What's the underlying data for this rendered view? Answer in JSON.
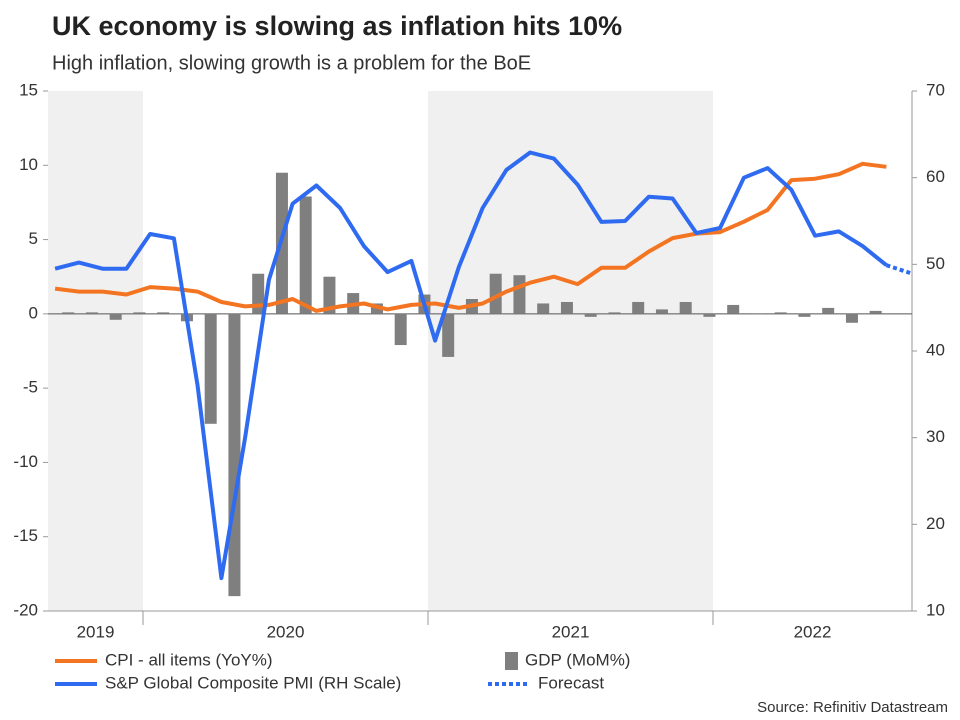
{
  "chart_data": {
    "type": "combo",
    "title": "UK economy is slowing as inflation hits 10%",
    "subtitle": "High inflation, slowing growth is a problem for the BoE",
    "source": "Source: Refinitiv Datastream",
    "x_years": [
      "2019",
      "2020",
      "2021",
      "2022"
    ],
    "categories": [
      null,
      null,
      null,
      null,
      null,
      null,
      null,
      null,
      null,
      null,
      null,
      null,
      null,
      null,
      null,
      null,
      null,
      null,
      null,
      null,
      null,
      null,
      null,
      null,
      null,
      null,
      null,
      null,
      null,
      null,
      null,
      null,
      null,
      null,
      null,
      null,
      null
    ],
    "ylim": [
      -20,
      15
    ],
    "yticks": [
      -20,
      -15,
      -10,
      -5,
      0,
      5,
      10,
      15
    ],
    "y2lim": [
      10,
      70
    ],
    "y2ticks": [
      10,
      20,
      30,
      40,
      50,
      60,
      70
    ],
    "series": [
      {
        "name": "GDP (MoM%)",
        "kind": "bar",
        "color": "#7f7f7f",
        "values": [
          0.1,
          0.1,
          -0.4,
          0.1,
          0.1,
          -0.5,
          -7.4,
          -19.0,
          2.7,
          9.5,
          7.9,
          2.5,
          1.4,
          0.7,
          -2.1,
          1.3,
          -2.9,
          1.0,
          2.7,
          2.6,
          0.7,
          0.8,
          -0.2,
          0.1,
          0.8,
          0.3,
          0.8,
          -0.2,
          0.6,
          0.0,
          0.1,
          -0.2,
          0.4,
          -0.6,
          0.2,
          null,
          null
        ]
      },
      {
        "name": "CPI - all items (YoY%)",
        "kind": "line",
        "color": "#f47521",
        "values": [
          1.7,
          1.5,
          1.5,
          1.3,
          1.8,
          1.7,
          1.5,
          0.8,
          0.5,
          0.6,
          1.0,
          0.2,
          0.5,
          0.7,
          0.3,
          0.6,
          0.7,
          0.4,
          0.7,
          1.5,
          2.1,
          2.5,
          2.0,
          3.1,
          3.1,
          4.2,
          5.1,
          5.4,
          5.5,
          6.2,
          7.0,
          9.0,
          9.1,
          9.4,
          10.1,
          9.9,
          null
        ]
      },
      {
        "name": "S&P Global Composite PMI (RH Scale)",
        "kind": "line",
        "axis": "y2",
        "color": "#2f6bf0",
        "values": [
          49.5,
          50.2,
          49.5,
          49.5,
          53.5,
          53.0,
          36.0,
          13.8,
          30.0,
          48.2,
          57.0,
          59.1,
          56.5,
          52.1,
          49.1,
          50.4,
          41.2,
          49.7,
          56.5,
          60.9,
          62.9,
          62.2,
          59.2,
          54.9,
          55.0,
          57.8,
          57.6,
          53.6,
          54.2,
          60.0,
          61.1,
          58.6,
          53.3,
          53.8,
          52.1,
          49.9,
          null
        ]
      },
      {
        "name": "Forecast",
        "kind": "line",
        "axis": "y2",
        "dashed": true,
        "color": "#2f6bf0",
        "values": [
          null,
          null,
          null,
          null,
          null,
          null,
          null,
          null,
          null,
          null,
          null,
          null,
          null,
          null,
          null,
          null,
          null,
          null,
          null,
          null,
          null,
          null,
          null,
          null,
          null,
          null,
          null,
          null,
          null,
          null,
          null,
          null,
          null,
          null,
          null,
          49.9,
          49.0
        ]
      }
    ]
  }
}
